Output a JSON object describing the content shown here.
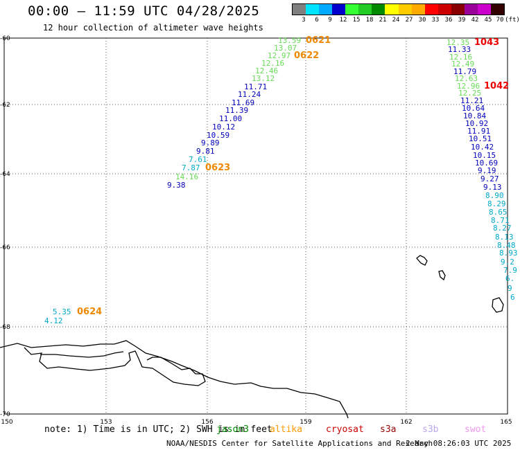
{
  "header": {
    "title": "00:00 — 11:59 UTC 04/28/2025",
    "subtitle": "12 hour collection of altimeter wave heights"
  },
  "legend": {
    "colors": [
      "#808080",
      "#00e5ff",
      "#00aaff",
      "#0000cc",
      "#33ff33",
      "#22cc22",
      "#008800",
      "#ffff00",
      "#ffcc00",
      "#ffaa00",
      "#ff0000",
      "#cc0000",
      "#880000",
      "#990099",
      "#cc00cc",
      "#330000"
    ],
    "labels": [
      "3",
      "6",
      "9",
      "12",
      "15",
      "18",
      "21",
      "24",
      "27",
      "30",
      "33",
      "36",
      "39",
      "42",
      "45",
      "70",
      "(ft)"
    ]
  },
  "map": {
    "lat_labels": [
      "-60",
      "-62",
      "-64",
      "-66",
      "-68",
      "-70"
    ],
    "lon_labels": [
      "150",
      "153",
      "156",
      "159",
      "162",
      "165"
    ],
    "tracks": [
      {
        "pass": "0621",
        "points": [
          "13.59",
          "13.07",
          "12.97",
          "12.16",
          "12.46",
          "13.12",
          "11.71",
          "11.24",
          "11.69",
          "11.39",
          "11.00",
          "10.12",
          "10.59",
          "9.89",
          "9.81",
          "7.61",
          "7.87",
          "14.16",
          "9.38"
        ]
      },
      {
        "pass": "0622",
        "points": []
      },
      {
        "pass": "0623",
        "points": []
      },
      {
        "pass": "1043",
        "points": [
          "12.35",
          "11.33",
          "12.16",
          "12.49",
          "11.79",
          "12.63",
          "12.96",
          "12.25",
          "11.21",
          "10.64",
          "10.84",
          "10.92",
          "11.91",
          "10.51",
          "10.42",
          "10.15",
          "10.69",
          "9.19",
          "9.27",
          "9.13",
          "8.90",
          "8.29",
          "8.65",
          "8.71",
          "8.27",
          "8.13",
          "8.48",
          "8.93",
          "9.2",
          "7.9",
          "6.",
          "9",
          "6"
        ]
      },
      {
        "pass": "1042",
        "points": []
      },
      {
        "pass": "0624",
        "points": [
          "5.35",
          "4.12"
        ]
      }
    ]
  },
  "footer": {
    "note": "note: 1) Time is in UTC; 2) SWH is in feet",
    "missions": [
      {
        "name": "jason3",
        "color": "#008800"
      },
      {
        "name": "altika",
        "color": "#ff9900"
      },
      {
        "name": "cryosat",
        "color": "#cc0000"
      },
      {
        "name": "s3a",
        "color": "#990000"
      },
      {
        "name": "s3b",
        "color": "#b7a6ee"
      },
      {
        "name": "swot",
        "color": "#ee99ee"
      }
    ],
    "credit": "NOAA/NESDIS Center for Satellite Applications and Research",
    "timestamp": "2 May 08:26:03 UTC 2025"
  },
  "colors": {
    "green": "#66dd55",
    "blue": "#0000bb",
    "cyan": "#00aacc",
    "pass_orange": "#ee8800",
    "pass_red": "#ee0000"
  }
}
